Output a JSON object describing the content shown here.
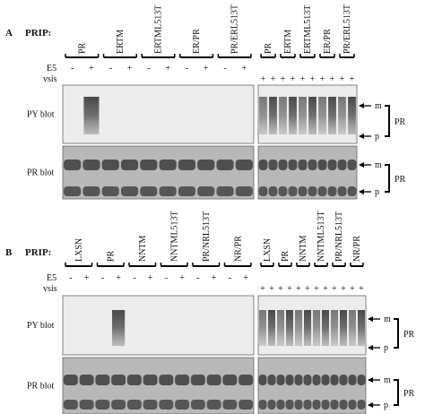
{
  "panels": [
    {
      "letter": "A",
      "prip": "PRIP:",
      "e5": "E5",
      "vsis": "vsis",
      "left": {
        "groups": [
          "PR",
          "ERTM",
          "ERTML513T",
          "ER/PR",
          "PR/ERL513T"
        ],
        "signs": [
          "-",
          "+",
          "-",
          "+",
          "-",
          "+",
          "-",
          "+",
          "-",
          "+"
        ]
      },
      "right": {
        "groups": [
          "PR",
          "ERTM",
          "ERTML513T",
          "ER/PR",
          "PR/ERL513T"
        ],
        "signs": [
          "+",
          "+",
          "+",
          "+",
          "+",
          "+",
          "+",
          "+",
          "+",
          "+"
        ]
      },
      "blots": [
        {
          "label": "PY blot",
          "upper": "m",
          "lower": "p",
          "bracket": "PR"
        },
        {
          "label": "PR blot",
          "upper": "m",
          "lower": "p",
          "bracket": "PR"
        }
      ]
    },
    {
      "letter": "B",
      "prip": "PRIP:",
      "e5": "E5",
      "vsis": "vsis",
      "left": {
        "groups": [
          "LXSN",
          "PR",
          "NNTM",
          "NNTML513T",
          "PR/NRL513T",
          "NR/PR"
        ],
        "signs": [
          "-",
          "+",
          "-",
          "+",
          "-",
          "+",
          "-",
          "+",
          "-",
          "+",
          "-",
          "+"
        ]
      },
      "right": {
        "groups": [
          "LXSN",
          "PR",
          "NNTM",
          "NNTML513T",
          "PR/NRL513T",
          "NR/PR"
        ],
        "signs": [
          "+",
          "+",
          "+",
          "+",
          "+",
          "+",
          "+",
          "+",
          "+",
          "+",
          "+",
          "+"
        ]
      },
      "blots": [
        {
          "label": "PY blot",
          "upper": "m",
          "lower": "p",
          "bracket": "PR"
        },
        {
          "label": "PR blot",
          "upper": "m",
          "lower": "p",
          "bracket": "PR"
        }
      ]
    }
  ]
}
